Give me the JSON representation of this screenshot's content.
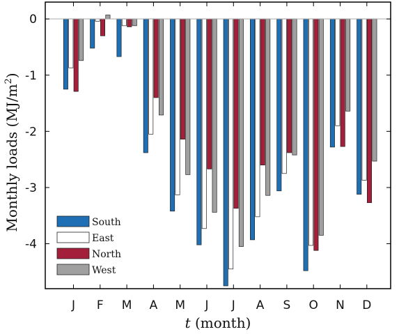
{
  "chart_data": {
    "type": "bar",
    "title": "",
    "xlabel_italic": "t",
    "xlabel_rest": " (month)",
    "ylabel": "Monthly loads (MJ/m",
    "ylabel_sup": "2",
    "ylabel_close": ")",
    "ylim": [
      -4.8,
      0.3
    ],
    "yticks": [
      0,
      -1,
      -2,
      -3,
      -4
    ],
    "ytick_labels": [
      "0",
      "-1",
      "-2",
      "-3",
      "-4"
    ],
    "categories": [
      "J",
      "F",
      "M",
      "A",
      "M",
      "J",
      "J",
      "A",
      "S",
      "O",
      "N",
      "D"
    ],
    "series": [
      {
        "name": "South",
        "color": "#1F6FB4",
        "values": [
          -1.25,
          -0.52,
          -0.67,
          -2.38,
          -3.42,
          -4.02,
          -4.75,
          -3.93,
          -3.06,
          -4.48,
          -2.28,
          -3.12
        ]
      },
      {
        "name": "East",
        "color": "#FFFFFF",
        "values": [
          -0.87,
          -0.04,
          -0.12,
          -2.05,
          -3.13,
          -3.73,
          -4.45,
          -3.52,
          -2.75,
          -4.03,
          -1.9,
          -2.87
        ]
      },
      {
        "name": "North",
        "color": "#A31F3A",
        "values": [
          -1.29,
          -0.3,
          -0.14,
          -1.4,
          -2.14,
          -2.67,
          -3.37,
          -2.6,
          -2.38,
          -4.12,
          -2.27,
          -3.27
        ]
      },
      {
        "name": "West",
        "color": "#A0A0A0",
        "values": [
          -0.74,
          0.07,
          -0.12,
          -1.71,
          -2.77,
          -3.44,
          -4.05,
          -3.14,
          -2.42,
          -3.85,
          -1.64,
          -2.53
        ]
      }
    ],
    "legend_position": "bottom-left",
    "grid": false
  }
}
